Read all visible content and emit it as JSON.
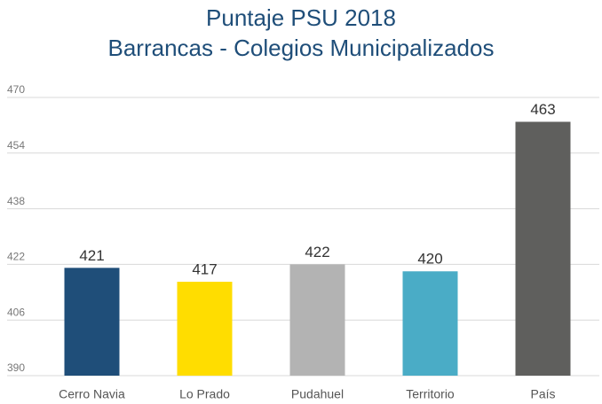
{
  "chart_data": {
    "type": "bar",
    "title": "Puntaje PSU 2018",
    "subtitle": "Barrancas - Colegios Municipalizados",
    "categories": [
      "Cerro Navia",
      "Lo Prado",
      "Pudahuel",
      "Territorio",
      "País"
    ],
    "values": [
      421,
      417,
      422,
      420,
      463
    ],
    "colors": [
      "#1f4e79",
      "#ffdd00",
      "#b3b3b3",
      "#4aacc6",
      "#5f5f5d"
    ],
    "ylim": [
      390,
      470
    ],
    "yticks": [
      390,
      406,
      422,
      438,
      454,
      470
    ],
    "grid": true
  }
}
